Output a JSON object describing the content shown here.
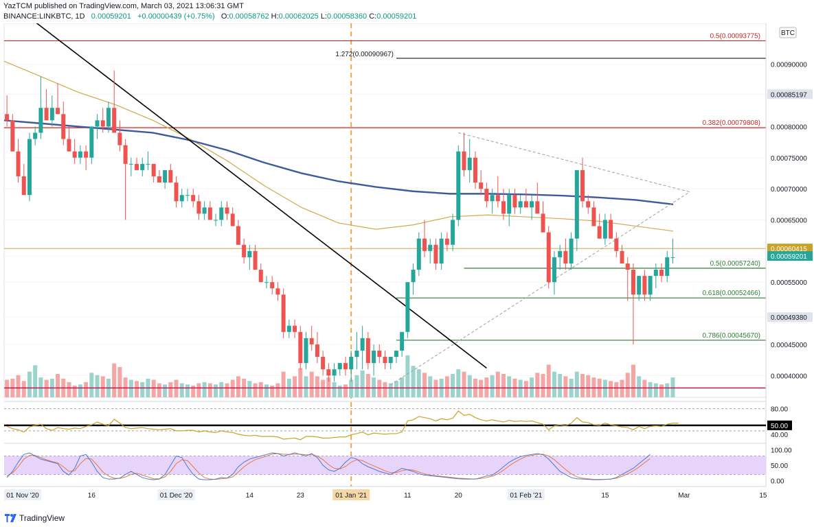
{
  "header": {
    "line1": "YazTCM published on TradingView.com, March 03, 2021 13:06:31 GMT",
    "symbol": "BINANCE:LINKBTC, 1D",
    "last": "0.00059201",
    "change": "+0.00000439 (+0.75%)",
    "o_label": "O:",
    "o": "0.00058762",
    "h_label": "H:",
    "h": "0.00062025",
    "l_label": "L:",
    "l": "0.00058360",
    "c_label": "C:",
    "c": "0.00059201"
  },
  "footer": {
    "brand": "TradingView"
  },
  "colors": {
    "up": "#26a69a",
    "down": "#ef5350",
    "up_vol": "#9dd3cd",
    "down_vol": "#f5a6a4",
    "ma200": "#3d5a9c",
    "ma100": "#d4a84b",
    "rsi": "#c9a227",
    "stoch_k": "#4e79c9",
    "stoch_d": "#e87a3c",
    "res_line": "#c62828",
    "fib_green": "#2e7d32",
    "trend_black": "#000000",
    "current_price_bg": "#26a69a",
    "ma_price_bg": "#c9a227"
  },
  "chart_data": {
    "type": "candlestick",
    "price_range": [
      0.000365,
      0.000957
    ],
    "currency_label": "BTC",
    "y_ticks": [
      "0.00090000",
      "0.00085197",
      "0.00080000",
      "0.00075000",
      "0.00070000",
      "0.00065000",
      "0.00060415",
      "0.00059201",
      "0.00055000",
      "0.00049380",
      "0.00045000",
      "0.00040000"
    ],
    "y_tick_values": [
      0.0009,
      0.00085197,
      0.0008,
      0.00075,
      0.0007,
      0.00065,
      0.00060415,
      0.00059201,
      0.00055,
      0.0004938,
      0.00045,
      0.0004
    ],
    "x_labels": [
      "01 Nov '20",
      "16",
      "01 Dec '20",
      "14",
      "23",
      "01 Jan '21",
      "11",
      "20",
      "01 Feb '21",
      "15",
      "Mar",
      "15"
    ],
    "x_label_days": [
      0,
      15,
      30,
      43,
      52,
      61,
      71,
      80,
      92,
      106,
      120,
      134
    ],
    "total_days": 144,
    "last_price": "0.00059201",
    "ma_price": "0.00060415",
    "candles_ohlc": [
      [
        0.00082,
        0.00085,
        0.0008,
        0.00081
      ],
      [
        0.00081,
        0.00082,
        0.00076,
        0.00076
      ],
      [
        0.00076,
        0.00078,
        0.00071,
        0.00072
      ],
      [
        0.00072,
        0.00074,
        0.00069,
        0.00069
      ],
      [
        0.00069,
        0.00079,
        0.00068,
        0.00078
      ],
      [
        0.00078,
        0.0008,
        0.00077,
        0.00079
      ],
      [
        0.00079,
        0.00088,
        0.00078,
        0.00083
      ],
      [
        0.00083,
        0.00086,
        0.00081,
        0.00081
      ],
      [
        0.00081,
        0.00085,
        0.0008,
        0.00083
      ],
      [
        0.00083,
        0.00087,
        0.00082,
        0.00082
      ],
      [
        0.00082,
        0.00084,
        0.00077,
        0.00078
      ],
      [
        0.00078,
        0.0008,
        0.00076,
        0.00076
      ],
      [
        0.00076,
        0.00078,
        0.00074,
        0.00075
      ],
      [
        0.00075,
        0.00077,
        0.00074,
        0.00076
      ],
      [
        0.00076,
        0.00077,
        0.00073,
        0.00075
      ],
      [
        0.00075,
        0.0008,
        0.00074,
        0.0008
      ],
      [
        0.0008,
        0.00082,
        0.00078,
        0.00081
      ],
      [
        0.00081,
        0.00083,
        0.00079,
        0.0008
      ],
      [
        0.0008,
        0.00084,
        0.00079,
        0.00083
      ],
      [
        0.00083,
        0.00089,
        0.0008,
        0.00079
      ],
      [
        0.00079,
        0.00081,
        0.00076,
        0.00077
      ],
      [
        0.00077,
        0.00078,
        0.00065,
        0.00074
      ],
      [
        0.00074,
        0.00075,
        0.00072,
        0.00074
      ],
      [
        0.00074,
        0.00075,
        0.00073,
        0.00073
      ],
      [
        0.00073,
        0.00075,
        0.00072,
        0.00074
      ],
      [
        0.00074,
        0.00076,
        0.00073,
        0.00074
      ],
      [
        0.00074,
        0.00074,
        0.00071,
        0.00072
      ],
      [
        0.00072,
        0.00073,
        0.00071,
        0.00071
      ],
      [
        0.00071,
        0.00073,
        0.0007,
        0.00073
      ],
      [
        0.00073,
        0.00074,
        0.00071,
        0.00071
      ],
      [
        0.00071,
        0.00072,
        0.00067,
        0.00068
      ],
      [
        0.00068,
        0.0007,
        0.00067,
        0.00069
      ],
      [
        0.00069,
        0.0007,
        0.00068,
        0.00069
      ],
      [
        0.00069,
        0.0007,
        0.00067,
        0.00068
      ],
      [
        0.00068,
        0.00069,
        0.00065,
        0.00066
      ],
      [
        0.00066,
        0.00068,
        0.00065,
        0.00067
      ],
      [
        0.00067,
        0.00068,
        0.00065,
        0.00065
      ],
      [
        0.00065,
        0.00066,
        0.00064,
        0.00065
      ],
      [
        0.00065,
        0.00068,
        0.00064,
        0.00067
      ],
      [
        0.00067,
        0.00068,
        0.00065,
        0.00066
      ],
      [
        0.00066,
        0.00067,
        0.00064,
        0.00064
      ],
      [
        0.00064,
        0.00065,
        0.00061,
        0.00061
      ],
      [
        0.00061,
        0.00062,
        0.00058,
        0.00059
      ],
      [
        0.00059,
        0.00061,
        0.00057,
        0.0006
      ],
      [
        0.0006,
        0.00061,
        0.00057,
        0.00057
      ],
      [
        0.00057,
        0.00058,
        0.00055,
        0.00055
      ],
      [
        0.00055,
        0.00056,
        0.00054,
        0.00055
      ],
      [
        0.00055,
        0.00056,
        0.00053,
        0.00054
      ],
      [
        0.00054,
        0.00055,
        0.00052,
        0.00053
      ],
      [
        0.00053,
        0.00054,
        0.00046,
        0.00047
      ],
      [
        0.00047,
        0.00049,
        0.00046,
        0.00048
      ],
      [
        0.00048,
        0.00049,
        0.00046,
        0.00047
      ],
      [
        0.00047,
        0.00048,
        0.00041,
        0.00042
      ],
      [
        0.00042,
        0.00047,
        0.00041,
        0.00046
      ],
      [
        0.00046,
        0.00048,
        0.00044,
        0.00045
      ],
      [
        0.00045,
        0.00047,
        0.00042,
        0.00043
      ],
      [
        0.00043,
        0.00044,
        0.0004,
        0.00041
      ],
      [
        0.00041,
        0.00042,
        0.00039,
        0.0004
      ],
      [
        0.0004,
        0.00042,
        0.00039,
        0.00041
      ],
      [
        0.00041,
        0.00042,
        0.0004,
        0.00042
      ],
      [
        0.00042,
        0.00043,
        0.0004,
        0.00041
      ],
      [
        0.00041,
        0.00044,
        0.00039,
        0.00043
      ],
      [
        0.00043,
        0.00047,
        0.00041,
        0.00044
      ],
      [
        0.00044,
        0.00048,
        0.00041,
        0.00046
      ],
      [
        0.00046,
        0.00047,
        0.00041,
        0.00042
      ],
      [
        0.00042,
        0.00045,
        0.0004,
        0.00044
      ],
      [
        0.00044,
        0.00045,
        0.00042,
        0.00043
      ],
      [
        0.00043,
        0.00044,
        0.00041,
        0.00042
      ],
      [
        0.00042,
        0.00043,
        0.00041,
        0.00043
      ],
      [
        0.00043,
        0.00044,
        0.00042,
        0.00044
      ],
      [
        0.00044,
        0.00047,
        0.00043,
        0.00047
      ],
      [
        0.00047,
        0.00055,
        0.00046,
        0.00055
      ],
      [
        0.00055,
        0.00058,
        0.00053,
        0.00057
      ],
      [
        0.00057,
        0.00063,
        0.00056,
        0.00062
      ],
      [
        0.00062,
        0.00065,
        0.00059,
        0.0006
      ],
      [
        0.0006,
        0.00062,
        0.00058,
        0.00061
      ],
      [
        0.00061,
        0.00062,
        0.00057,
        0.00058
      ],
      [
        0.00058,
        0.00063,
        0.00057,
        0.00062
      ],
      [
        0.00062,
        0.00063,
        0.0006,
        0.00061
      ],
      [
        0.00061,
        0.00066,
        0.0006,
        0.00065
      ],
      [
        0.00065,
        0.00077,
        0.00064,
        0.00076
      ],
      [
        0.00076,
        0.00079,
        0.00072,
        0.00073
      ],
      [
        0.00073,
        0.00078,
        0.00071,
        0.00075
      ],
      [
        0.00075,
        0.00076,
        0.0007,
        0.00071
      ],
      [
        0.00071,
        0.00073,
        0.00069,
        0.0007
      ],
      [
        0.0007,
        0.00071,
        0.00067,
        0.00068
      ],
      [
        0.00068,
        0.0007,
        0.00066,
        0.00069
      ],
      [
        0.00069,
        0.00072,
        0.00067,
        0.00068
      ],
      [
        0.00068,
        0.0007,
        0.00065,
        0.00066
      ],
      [
        0.00066,
        0.0007,
        0.00064,
        0.00069
      ],
      [
        0.00069,
        0.0007,
        0.00066,
        0.00067
      ],
      [
        0.00067,
        0.00069,
        0.00066,
        0.00068
      ],
      [
        0.00068,
        0.0007,
        0.00067,
        0.00067
      ],
      [
        0.00067,
        0.00069,
        0.00065,
        0.00068
      ],
      [
        0.00068,
        0.00071,
        0.00066,
        0.00066
      ],
      [
        0.00066,
        0.00068,
        0.00063,
        0.00063
      ],
      [
        0.00063,
        0.00064,
        0.00054,
        0.00055
      ],
      [
        0.00055,
        0.0006,
        0.00053,
        0.00059
      ],
      [
        0.00059,
        0.00061,
        0.00057,
        0.0006
      ],
      [
        0.0006,
        0.00062,
        0.00057,
        0.00058
      ],
      [
        0.00058,
        0.00063,
        0.00057,
        0.00062
      ],
      [
        0.00062,
        0.00073,
        0.0006,
        0.00073
      ],
      [
        0.00073,
        0.00075,
        0.00067,
        0.00068
      ],
      [
        0.00068,
        0.00069,
        0.00066,
        0.00067
      ],
      [
        0.00067,
        0.00068,
        0.00064,
        0.00064
      ],
      [
        0.00064,
        0.00066,
        0.00062,
        0.00062
      ],
      [
        0.00062,
        0.00066,
        0.00061,
        0.00065
      ],
      [
        0.00065,
        0.00066,
        0.00062,
        0.00062
      ],
      [
        0.00062,
        0.00063,
        0.00059,
        0.0006
      ],
      [
        0.0006,
        0.00061,
        0.00058,
        0.00058
      ],
      [
        0.00058,
        0.00059,
        0.00052,
        0.00057
      ],
      [
        0.00057,
        0.00058,
        0.00045,
        0.00053
      ],
      [
        0.00053,
        0.00056,
        0.00052,
        0.00056
      ],
      [
        0.00056,
        0.00057,
        0.00052,
        0.00053
      ],
      [
        0.00053,
        0.00056,
        0.00052,
        0.00056
      ],
      [
        0.00056,
        0.00058,
        0.00054,
        0.00057
      ],
      [
        0.00057,
        0.00058,
        0.00055,
        0.00056
      ],
      [
        0.00056,
        0.0006,
        0.00055,
        0.00059
      ],
      [
        0.00059,
        0.00062,
        0.00058,
        0.00059
      ]
    ],
    "volumes": [
      0.3,
      0.32,
      0.38,
      0.28,
      0.44,
      0.55,
      0.34,
      0.3,
      0.32,
      0.4,
      0.32,
      0.26,
      0.2,
      0.22,
      0.26,
      0.42,
      0.38,
      0.36,
      0.32,
      0.58,
      0.52,
      0.34,
      0.3,
      0.28,
      0.26,
      0.32,
      0.3,
      0.24,
      0.22,
      0.26,
      0.3,
      0.24,
      0.22,
      0.2,
      0.24,
      0.26,
      0.24,
      0.22,
      0.26,
      0.24,
      0.3,
      0.36,
      0.32,
      0.28,
      0.24,
      0.26,
      0.22,
      0.2,
      0.24,
      0.44,
      0.32,
      0.36,
      0.5,
      0.36,
      0.44,
      0.36,
      0.3,
      0.34,
      0.26,
      0.2,
      0.22,
      0.3,
      0.38,
      0.46,
      0.4,
      0.34,
      0.3,
      0.26,
      0.24,
      0.28,
      0.34,
      0.72,
      0.54,
      0.48,
      0.42,
      0.36,
      0.3,
      0.32,
      0.36,
      0.4,
      0.48,
      0.44,
      0.38,
      0.32,
      0.3,
      0.34,
      0.38,
      0.44,
      0.4,
      0.36,
      0.32,
      0.3,
      0.28,
      0.34,
      0.42,
      0.4,
      0.56,
      0.44,
      0.4,
      0.36,
      0.32,
      0.44,
      0.4,
      0.38,
      0.34,
      0.32,
      0.3,
      0.28,
      0.26,
      0.3,
      0.42,
      0.56,
      0.36,
      0.3,
      0.26,
      0.24,
      0.22,
      0.24,
      0.34,
      0.18
    ],
    "ma200": [
      0.00081,
      0.000805,
      0.0008,
      0.000795,
      0.00079,
      0.000778,
      0.000762,
      0.000742,
      0.000725,
      0.000712,
      0.000703,
      0.000696,
      0.000692,
      0.000692,
      0.000691,
      0.000689,
      0.000686,
      0.000682,
      0.000675
    ],
    "ma100": [
      0.000905,
      0.00088,
      0.000855,
      0.000835,
      0.00081,
      0.00078,
      0.000745,
      0.000705,
      0.00067,
      0.000645,
      0.000635,
      0.000642,
      0.000655,
      0.000658,
      0.000655,
      0.000652,
      0.000648,
      0.00064,
      0.000632
    ],
    "levels": [
      {
        "label": "0.5(0.00093775)",
        "value": 0.00093775,
        "color": "res",
        "side": "right",
        "from_day": 0
      },
      {
        "label": "1.272(0.00090967)",
        "value": 0.00090967,
        "color": "black",
        "side": "left",
        "from_day": 69
      },
      {
        "label": "0.382(0.00079808)",
        "value": 0.00079808,
        "color": "res",
        "side": "right",
        "from_day": 0
      },
      {
        "label": "0.5(0.00057240)",
        "value": 0.0005724,
        "color": "green",
        "side": "right",
        "from_day": 81
      },
      {
        "label": "0.618(0.00052466)",
        "value": 0.00052466,
        "color": "green",
        "side": "right",
        "from_day": 69
      },
      {
        "label": "0.786(0.00045670)",
        "value": 0.0004567,
        "color": "green",
        "side": "right",
        "from_day": 69
      }
    ],
    "support_red": 0.00038,
    "rsi": {
      "ticks": [
        "80.00",
        "50.00",
        "40.00"
      ],
      "tick_values": [
        80,
        50,
        40
      ],
      "range": [
        25,
        92
      ],
      "values": [
        48,
        44,
        42,
        38,
        47,
        50,
        52,
        44,
        41,
        46,
        44,
        43,
        45,
        44,
        48,
        51,
        56,
        52,
        49,
        61,
        54,
        46,
        44,
        45,
        46,
        44,
        43,
        42,
        43,
        44,
        40,
        40,
        41,
        41,
        38,
        40,
        38,
        37,
        40,
        38,
        37,
        34,
        32,
        31,
        32,
        30,
        30,
        30,
        29,
        25,
        26,
        27,
        24,
        30,
        30,
        29,
        27,
        27,
        28,
        29,
        29,
        33,
        35,
        38,
        33,
        36,
        35,
        34,
        35,
        35,
        38,
        58,
        60,
        66,
        64,
        62,
        58,
        62,
        60,
        63,
        76,
        68,
        70,
        64,
        60,
        58,
        60,
        58,
        56,
        59,
        57,
        58,
        57,
        58,
        55,
        52,
        42,
        49,
        51,
        49,
        54,
        64,
        56,
        55,
        51,
        50,
        54,
        51,
        49,
        47,
        46,
        42,
        48,
        44,
        48,
        49,
        48,
        52,
        54,
        54
      ],
      "value_label": "50.00"
    },
    "stoch": {
      "ticks": [
        "100.00",
        "50.00",
        "0.00"
      ],
      "tick_values": [
        100,
        50,
        0
      ],
      "range": [
        -8,
        108
      ],
      "k": [
        10,
        30,
        60,
        85,
        90,
        80,
        70,
        65,
        60,
        55,
        30,
        18,
        40,
        80,
        85,
        60,
        30,
        10,
        5,
        5,
        8,
        20,
        30,
        20,
        10,
        5,
        3,
        5,
        20,
        50,
        80,
        75,
        45,
        20,
        5,
        3,
        3,
        5,
        10,
        8,
        20,
        45,
        60,
        70,
        75,
        80,
        85,
        90,
        88,
        80,
        85,
        90,
        85,
        80,
        88,
        75,
        50,
        35,
        30,
        40,
        60,
        75,
        70,
        55,
        45,
        38,
        30,
        25,
        20,
        30,
        40,
        35,
        30,
        22,
        18,
        16,
        14,
        12,
        10,
        8,
        6,
        5,
        5,
        5,
        10,
        15,
        18,
        30,
        45,
        60,
        70,
        78,
        82,
        85,
        88,
        84,
        70,
        50,
        30,
        20,
        10,
        6,
        5,
        4,
        3,
        3,
        4,
        5,
        10,
        20,
        30,
        40,
        55,
        70,
        85
      ],
      "d": [
        15,
        25,
        45,
        70,
        82,
        82,
        75,
        68,
        62,
        58,
        45,
        30,
        32,
        55,
        72,
        70,
        50,
        28,
        15,
        8,
        7,
        12,
        20,
        24,
        18,
        12,
        6,
        6,
        12,
        30,
        55,
        68,
        65,
        45,
        25,
        10,
        5,
        4,
        6,
        8,
        12,
        28,
        45,
        58,
        68,
        74,
        80,
        86,
        88,
        86,
        85,
        86,
        86,
        84,
        84,
        80,
        68,
        52,
        40,
        38,
        46,
        60,
        68,
        65,
        56,
        48,
        40,
        32,
        26,
        26,
        32,
        36,
        34,
        28,
        22,
        18,
        16,
        14,
        12,
        10,
        8,
        7,
        6,
        5,
        7,
        10,
        14,
        22,
        34,
        48,
        60,
        70,
        78,
        82,
        85,
        86,
        80,
        68,
        52,
        36,
        22,
        12,
        8,
        6,
        4,
        4,
        4,
        5,
        8,
        14,
        22,
        32,
        44,
        58,
        72
      ]
    }
  }
}
